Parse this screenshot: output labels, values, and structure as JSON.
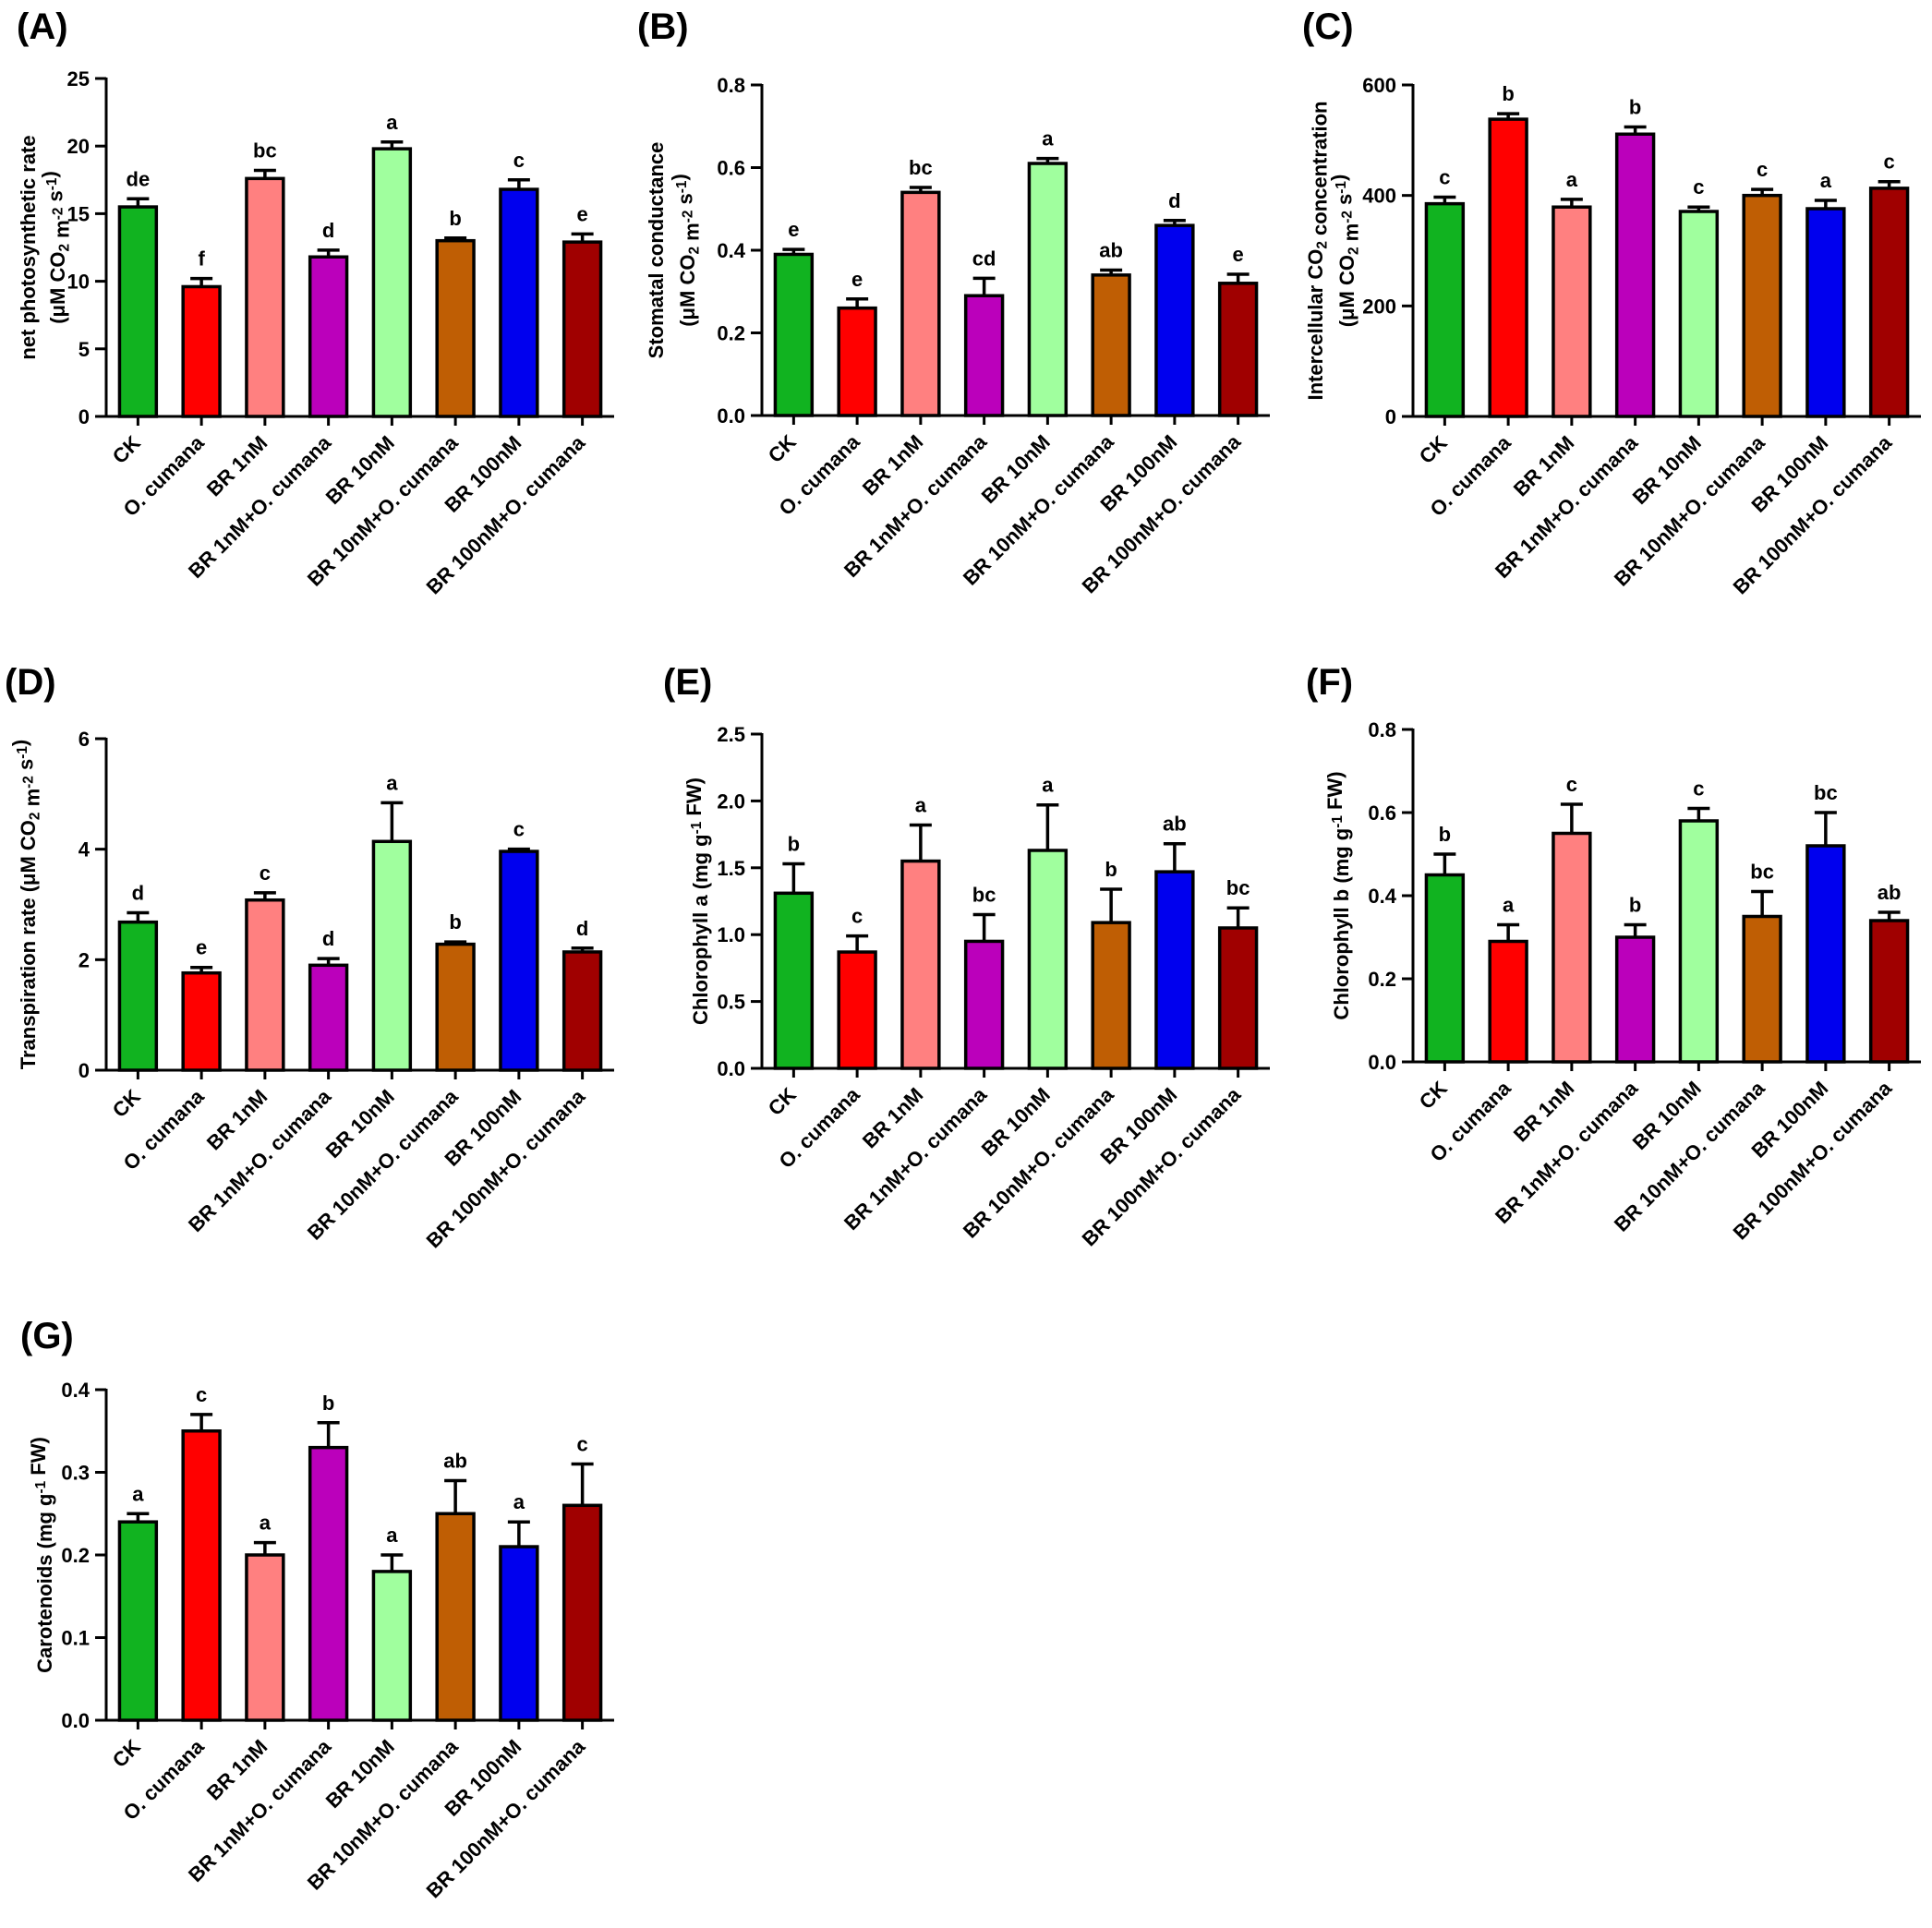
{
  "figure": {
    "categories": [
      "CK",
      "O. cumana",
      "BR 1nM",
      "BR 1nM+O. cumana",
      "BR 10nM",
      "BR 10nM+O. cumana",
      "BR 100nM",
      "BR 100nM+O. cumana"
    ],
    "bar_colors": [
      "#11b320",
      "#ff0000",
      "#ff8080",
      "#bb00bb",
      "#a0ff9e",
      "#bf5e04",
      "#0000ee",
      "#a00000"
    ]
  },
  "chart_data": [
    {
      "panel_label": "(A)",
      "type": "bar",
      "ylabel_line1": "net photosynthetic rate",
      "ylabel_line2": "(μM CO2 m-2 s-1)",
      "ylim": [
        0,
        25
      ],
      "yticks": [
        0,
        5,
        10,
        15,
        20,
        25
      ],
      "values": [
        15.5,
        9.6,
        17.6,
        11.8,
        19.8,
        13.0,
        16.8,
        12.9
      ],
      "errors": [
        0.6,
        0.6,
        0.6,
        0.5,
        0.5,
        0.2,
        0.7,
        0.6
      ],
      "letters": [
        "de",
        "f",
        "bc",
        "d",
        "a",
        "b",
        "c",
        "e"
      ]
    },
    {
      "panel_label": "(B)",
      "type": "bar",
      "ylabel_line1": "Stomatal conductance",
      "ylabel_line2": "(μM CO2 m-2 s-1)",
      "ylim": [
        0,
        0.8
      ],
      "yticks": [
        0.0,
        0.2,
        0.4,
        0.6,
        0.8
      ],
      "values": [
        0.39,
        0.26,
        0.54,
        0.29,
        0.61,
        0.34,
        0.46,
        0.32
      ],
      "errors": [
        0.012,
        0.022,
        0.012,
        0.042,
        0.012,
        0.012,
        0.012,
        0.022
      ],
      "letters": [
        "e",
        "e",
        "bc",
        "cd",
        "a",
        "ab",
        "d",
        "e"
      ]
    },
    {
      "panel_label": "(C)",
      "type": "bar",
      "ylabel_line1": "Intercellular CO2 concentration",
      "ylabel_line2": "(μM CO2 m-2 s-1)",
      "ylim": [
        0,
        600
      ],
      "yticks": [
        0,
        200,
        400,
        600
      ],
      "values": [
        385,
        538,
        379,
        511,
        371,
        400,
        376,
        413
      ],
      "errors": [
        12,
        10,
        14,
        13,
        8,
        11,
        15,
        12
      ],
      "letters": [
        "c",
        "b",
        "a",
        "b",
        "c",
        "c",
        "a",
        "c"
      ]
    },
    {
      "panel_label": "(D)",
      "type": "bar",
      "ylabel_line1": "Transpiration rate (μM CO2 m-2 s-1)",
      "ylabel_line2": "",
      "ylim": [
        0,
        6
      ],
      "yticks": [
        0,
        2,
        4,
        6
      ],
      "values": [
        2.68,
        1.76,
        3.08,
        1.9,
        4.14,
        2.28,
        3.96,
        2.14
      ],
      "errors": [
        0.17,
        0.1,
        0.13,
        0.12,
        0.7,
        0.04,
        0.04,
        0.07
      ],
      "letters": [
        "d",
        "e",
        "c",
        "d",
        "a",
        "b",
        "c",
        "d"
      ]
    },
    {
      "panel_label": "(E)",
      "type": "bar",
      "ylabel_line1": "Chlorophyll a (mg g-1 FW)",
      "ylabel_line2": "",
      "ylim": [
        0,
        2.5
      ],
      "yticks": [
        0.0,
        0.5,
        1.0,
        1.5,
        2.0,
        2.5
      ],
      "values": [
        1.31,
        0.87,
        1.55,
        0.95,
        1.63,
        1.09,
        1.47,
        1.05
      ],
      "errors": [
        0.22,
        0.12,
        0.27,
        0.2,
        0.34,
        0.25,
        0.21,
        0.15
      ],
      "letters": [
        "b",
        "c",
        "a",
        "bc",
        "a",
        "b",
        "ab",
        "bc"
      ]
    },
    {
      "panel_label": "(F)",
      "type": "bar",
      "ylabel_line1": "Chlorophyll b (mg g-1 FW)",
      "ylabel_line2": "",
      "ylim": [
        0,
        0.8
      ],
      "yticks": [
        0.0,
        0.2,
        0.4,
        0.6,
        0.8
      ],
      "values": [
        0.45,
        0.29,
        0.55,
        0.3,
        0.58,
        0.35,
        0.52,
        0.34
      ],
      "errors": [
        0.05,
        0.04,
        0.07,
        0.03,
        0.03,
        0.06,
        0.08,
        0.02
      ],
      "letters": [
        "b",
        "a",
        "c",
        "b",
        "c",
        "bc",
        "bc",
        "ab"
      ]
    },
    {
      "panel_label": "(G)",
      "type": "bar",
      "ylabel_line1": "Carotenoids (mg g-1 FW)",
      "ylabel_line2": "",
      "ylim": [
        0,
        0.4
      ],
      "yticks": [
        0.0,
        0.1,
        0.2,
        0.3,
        0.4
      ],
      "values": [
        0.24,
        0.35,
        0.2,
        0.33,
        0.18,
        0.25,
        0.21,
        0.26
      ],
      "errors": [
        0.01,
        0.02,
        0.015,
        0.03,
        0.02,
        0.04,
        0.03,
        0.05
      ],
      "letters": [
        "a",
        "c",
        "a",
        "b",
        "a",
        "ab",
        "a",
        "c"
      ]
    }
  ]
}
